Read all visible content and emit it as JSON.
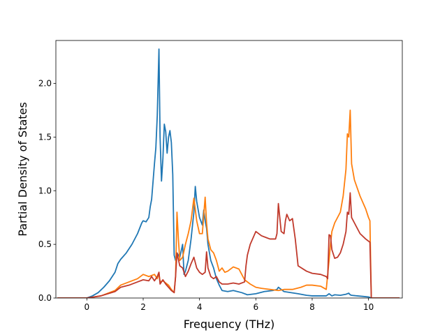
{
  "chart_data": {
    "type": "line",
    "title": "",
    "xlabel": "Frequency (THz)",
    "ylabel": "Partial Density of States",
    "xlim": [
      -1.1,
      11.2
    ],
    "ylim": [
      0.0,
      2.4
    ],
    "xticks": [
      0,
      2,
      4,
      6,
      8,
      10
    ],
    "yticks": [
      0.0,
      0.5,
      1.0,
      1.5,
      2.0
    ],
    "xtick_labels": [
      "0",
      "2",
      "4",
      "6",
      "8",
      "10"
    ],
    "ytick_labels": [
      "0.0",
      "0.5",
      "1.0",
      "1.5",
      "2.0"
    ],
    "grid": false,
    "legend": "none",
    "series": [
      {
        "color": "#1f77b4",
        "x": [
          -1.05,
          0.0,
          0.2,
          0.4,
          0.6,
          0.8,
          1.0,
          1.1,
          1.2,
          1.4,
          1.6,
          1.8,
          1.95,
          2.0,
          2.1,
          2.2,
          2.25,
          2.3,
          2.4,
          2.45,
          2.5,
          2.56,
          2.6,
          2.65,
          2.7,
          2.75,
          2.8,
          2.85,
          2.9,
          2.95,
          3.0,
          3.05,
          3.1,
          3.15,
          3.2,
          3.3,
          3.4,
          3.45,
          3.5,
          3.6,
          3.7,
          3.8,
          3.85,
          3.9,
          4.0,
          4.1,
          4.15,
          4.2,
          4.25,
          4.3,
          4.4,
          4.5,
          4.6,
          4.7,
          4.8,
          5.0,
          5.2,
          5.5,
          5.7,
          6.0,
          6.3,
          6.6,
          6.75,
          6.8,
          6.9,
          7.0,
          7.5,
          7.8,
          8.0,
          8.3,
          8.5,
          8.6,
          8.7,
          8.8,
          9.0,
          9.2,
          9.3,
          9.35,
          9.4,
          9.6,
          9.8,
          10.0,
          10.05,
          10.1,
          10.5,
          11.1
        ],
        "y": [
          0.0,
          0.0,
          0.02,
          0.05,
          0.1,
          0.16,
          0.24,
          0.32,
          0.36,
          0.42,
          0.5,
          0.6,
          0.7,
          0.72,
          0.71,
          0.75,
          0.85,
          0.92,
          1.25,
          1.4,
          1.7,
          2.32,
          1.5,
          1.09,
          1.3,
          1.62,
          1.55,
          1.35,
          1.5,
          1.56,
          1.45,
          1.15,
          0.4,
          0.35,
          0.42,
          0.38,
          0.5,
          0.22,
          0.25,
          0.35,
          0.55,
          0.8,
          1.04,
          0.9,
          0.75,
          0.68,
          0.82,
          0.72,
          0.65,
          0.5,
          0.35,
          0.28,
          0.18,
          0.12,
          0.07,
          0.06,
          0.07,
          0.05,
          0.03,
          0.04,
          0.06,
          0.07,
          0.08,
          0.1,
          0.08,
          0.06,
          0.04,
          0.025,
          0.02,
          0.02,
          0.02,
          0.04,
          0.02,
          0.03,
          0.025,
          0.035,
          0.045,
          0.03,
          0.025,
          0.02,
          0.015,
          0.01,
          0.005,
          0.0,
          0.0,
          0.0
        ]
      },
      {
        "color": "#ff7f0e",
        "x": [
          -1.05,
          0.0,
          0.5,
          1.0,
          1.2,
          1.5,
          1.8,
          2.0,
          2.2,
          2.4,
          2.5,
          2.56,
          2.6,
          2.7,
          2.8,
          2.9,
          3.0,
          3.1,
          3.15,
          3.2,
          3.25,
          3.3,
          3.4,
          3.5,
          3.6,
          3.7,
          3.8,
          3.9,
          4.0,
          4.1,
          4.2,
          4.25,
          4.3,
          4.4,
          4.5,
          4.6,
          4.7,
          4.8,
          4.9,
          5.0,
          5.2,
          5.4,
          5.5,
          5.6,
          5.8,
          6.0,
          6.2,
          6.5,
          6.8,
          7.0,
          7.3,
          7.6,
          7.8,
          8.0,
          8.3,
          8.5,
          8.6,
          8.65,
          8.7,
          8.8,
          9.0,
          9.1,
          9.2,
          9.25,
          9.3,
          9.35,
          9.4,
          9.5,
          9.7,
          9.9,
          10.0,
          10.05,
          10.1,
          10.5,
          11.1
        ],
        "y": [
          0.0,
          0.0,
          0.02,
          0.07,
          0.12,
          0.15,
          0.18,
          0.22,
          0.2,
          0.22,
          0.18,
          0.23,
          0.15,
          0.16,
          0.14,
          0.12,
          0.08,
          0.05,
          0.2,
          0.8,
          0.55,
          0.35,
          0.38,
          0.5,
          0.6,
          0.72,
          0.93,
          0.72,
          0.6,
          0.6,
          0.94,
          0.7,
          0.55,
          0.45,
          0.42,
          0.35,
          0.25,
          0.28,
          0.24,
          0.25,
          0.29,
          0.27,
          0.22,
          0.17,
          0.13,
          0.1,
          0.09,
          0.08,
          0.07,
          0.08,
          0.08,
          0.1,
          0.12,
          0.12,
          0.11,
          0.08,
          0.35,
          0.5,
          0.62,
          0.7,
          0.8,
          0.95,
          1.2,
          1.53,
          1.5,
          1.75,
          1.25,
          1.1,
          0.95,
          0.83,
          0.75,
          0.72,
          0.0,
          0.0,
          0.0
        ]
      },
      {
        "color": "#c0392b",
        "x": [
          -1.05,
          0.0,
          0.5,
          1.0,
          1.2,
          1.5,
          1.8,
          2.0,
          2.2,
          2.3,
          2.4,
          2.5,
          2.56,
          2.6,
          2.7,
          2.8,
          2.9,
          3.0,
          3.1,
          3.15,
          3.2,
          3.3,
          3.4,
          3.5,
          3.6,
          3.7,
          3.8,
          3.9,
          4.0,
          4.1,
          4.2,
          4.25,
          4.3,
          4.4,
          4.5,
          4.6,
          4.7,
          4.8,
          5.0,
          5.2,
          5.4,
          5.6,
          5.65,
          5.7,
          5.8,
          6.0,
          6.2,
          6.5,
          6.7,
          6.75,
          6.8,
          6.9,
          7.0,
          7.05,
          7.1,
          7.15,
          7.2,
          7.3,
          7.4,
          7.5,
          7.8,
          8.0,
          8.3,
          8.5,
          8.55,
          8.6,
          8.65,
          8.7,
          8.8,
          8.9,
          9.0,
          9.1,
          9.2,
          9.25,
          9.3,
          9.35,
          9.4,
          9.5,
          9.7,
          9.9,
          10.0,
          10.05,
          10.1,
          10.5,
          11.1
        ],
        "y": [
          0.0,
          0.0,
          0.02,
          0.06,
          0.1,
          0.12,
          0.15,
          0.17,
          0.16,
          0.2,
          0.16,
          0.2,
          0.24,
          0.13,
          0.17,
          0.13,
          0.1,
          0.07,
          0.05,
          0.2,
          0.42,
          0.3,
          0.28,
          0.2,
          0.25,
          0.32,
          0.38,
          0.28,
          0.24,
          0.22,
          0.24,
          0.43,
          0.28,
          0.2,
          0.18,
          0.2,
          0.15,
          0.13,
          0.13,
          0.14,
          0.13,
          0.15,
          0.3,
          0.4,
          0.5,
          0.62,
          0.58,
          0.55,
          0.55,
          0.6,
          0.88,
          0.62,
          0.6,
          0.72,
          0.78,
          0.75,
          0.72,
          0.74,
          0.55,
          0.3,
          0.25,
          0.23,
          0.22,
          0.2,
          0.18,
          0.59,
          0.58,
          0.45,
          0.37,
          0.38,
          0.42,
          0.5,
          0.62,
          0.8,
          0.78,
          0.98,
          0.75,
          0.7,
          0.6,
          0.55,
          0.53,
          0.52,
          0.0,
          0.0,
          0.0
        ]
      }
    ]
  }
}
